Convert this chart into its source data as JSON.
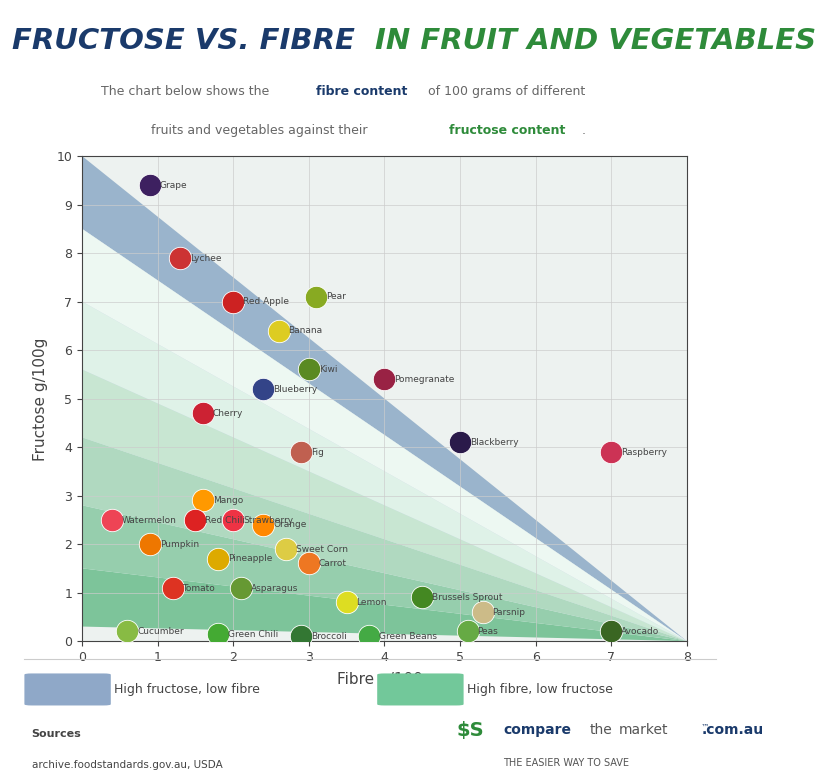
{
  "title_blue": "FRUCTOSE VS. FIBRE ",
  "title_green": "IN FRUIT AND VEGETABLES",
  "xlabel": "Fibre g/100g",
  "ylabel": "Fructose g/100g",
  "xlim": [
    0,
    8
  ],
  "ylim": [
    0,
    10
  ],
  "bg_color": "#ffffff",
  "legend_blue_label": "High fructose, low fibre",
  "legend_green_label": "High fibre, low fructose",
  "legend_blue_color": "#8fa8c8",
  "legend_green_color": "#72c89a",
  "sources_label": "Sources",
  "sources_text": "archive.foodstandards.gov.au, USDA",
  "fruits": [
    {
      "name": "Grape",
      "fibre": 0.9,
      "fructose": 9.4,
      "color": "#3d2060"
    },
    {
      "name": "Lychee",
      "fibre": 1.3,
      "fructose": 7.9,
      "color": "#cc3333"
    },
    {
      "name": "Red Apple",
      "fibre": 2.0,
      "fructose": 7.0,
      "color": "#cc2222"
    },
    {
      "name": "Pear",
      "fibre": 3.1,
      "fructose": 7.1,
      "color": "#88aa22"
    },
    {
      "name": "Banana",
      "fibre": 2.6,
      "fructose": 6.4,
      "color": "#ddcc22"
    },
    {
      "name": "Kiwi",
      "fibre": 3.0,
      "fructose": 5.6,
      "color": "#5a8a22"
    },
    {
      "name": "Blueberry",
      "fibre": 2.4,
      "fructose": 5.2,
      "color": "#334488"
    },
    {
      "name": "Pomegranate",
      "fibre": 4.0,
      "fructose": 5.4,
      "color": "#992244"
    },
    {
      "name": "Cherry",
      "fibre": 1.6,
      "fructose": 4.7,
      "color": "#cc2233"
    },
    {
      "name": "Fig",
      "fibre": 2.9,
      "fructose": 3.9,
      "color": "#c06050"
    },
    {
      "name": "Blackberry",
      "fibre": 5.0,
      "fructose": 4.1,
      "color": "#2a1a4a"
    },
    {
      "name": "Raspberry",
      "fibre": 7.0,
      "fructose": 3.9,
      "color": "#cc3355"
    },
    {
      "name": "Mango",
      "fibre": 1.6,
      "fructose": 2.9,
      "color": "#ff9900"
    },
    {
      "name": "Watermelon",
      "fibre": 0.4,
      "fructose": 2.5,
      "color": "#ee4455"
    },
    {
      "name": "Red Chili",
      "fibre": 1.5,
      "fructose": 2.5,
      "color": "#dd2222"
    },
    {
      "name": "Strawberry",
      "fibre": 2.0,
      "fructose": 2.5,
      "color": "#ee3344"
    },
    {
      "name": "Orange",
      "fibre": 2.4,
      "fructose": 2.4,
      "color": "#ff8800"
    },
    {
      "name": "Pumpkin",
      "fibre": 0.9,
      "fructose": 2.0,
      "color": "#ee7700"
    },
    {
      "name": "Pineapple",
      "fibre": 1.8,
      "fructose": 1.7,
      "color": "#ddaa00"
    },
    {
      "name": "Sweet Corn",
      "fibre": 2.7,
      "fructose": 1.9,
      "color": "#ddcc44"
    },
    {
      "name": "Carrot",
      "fibre": 3.0,
      "fructose": 1.6,
      "color": "#ee7722"
    },
    {
      "name": "Tomato",
      "fibre": 1.2,
      "fructose": 1.1,
      "color": "#dd3322"
    },
    {
      "name": "Asparagus",
      "fibre": 2.1,
      "fructose": 1.1,
      "color": "#669933"
    },
    {
      "name": "Lemon",
      "fibre": 3.5,
      "fructose": 0.8,
      "color": "#dddd22"
    },
    {
      "name": "Brussels Sprout",
      "fibre": 4.5,
      "fructose": 0.9,
      "color": "#448822"
    },
    {
      "name": "Parsnip",
      "fibre": 5.3,
      "fructose": 0.6,
      "color": "#ccbb88"
    },
    {
      "name": "Cucumber",
      "fibre": 0.6,
      "fructose": 0.2,
      "color": "#88bb44"
    },
    {
      "name": "Green Chili",
      "fibre": 1.8,
      "fructose": 0.15,
      "color": "#44aa33"
    },
    {
      "name": "Broccoli",
      "fibre": 2.9,
      "fructose": 0.1,
      "color": "#337733"
    },
    {
      "name": "Green Beans",
      "fibre": 3.8,
      "fructose": 0.1,
      "color": "#44aa44"
    },
    {
      "name": "Peas",
      "fibre": 5.1,
      "fructose": 0.2,
      "color": "#66aa44"
    },
    {
      "name": "Avocado",
      "fibre": 7.0,
      "fructose": 0.2,
      "color": "#3a6622"
    }
  ],
  "blue_title_color": "#1a3a6b",
  "green_title_color": "#2e8b3a",
  "subtitle_color": "#666666",
  "label_color": "#444444",
  "axis_color": "#444444",
  "grid_color": "#cccccc"
}
